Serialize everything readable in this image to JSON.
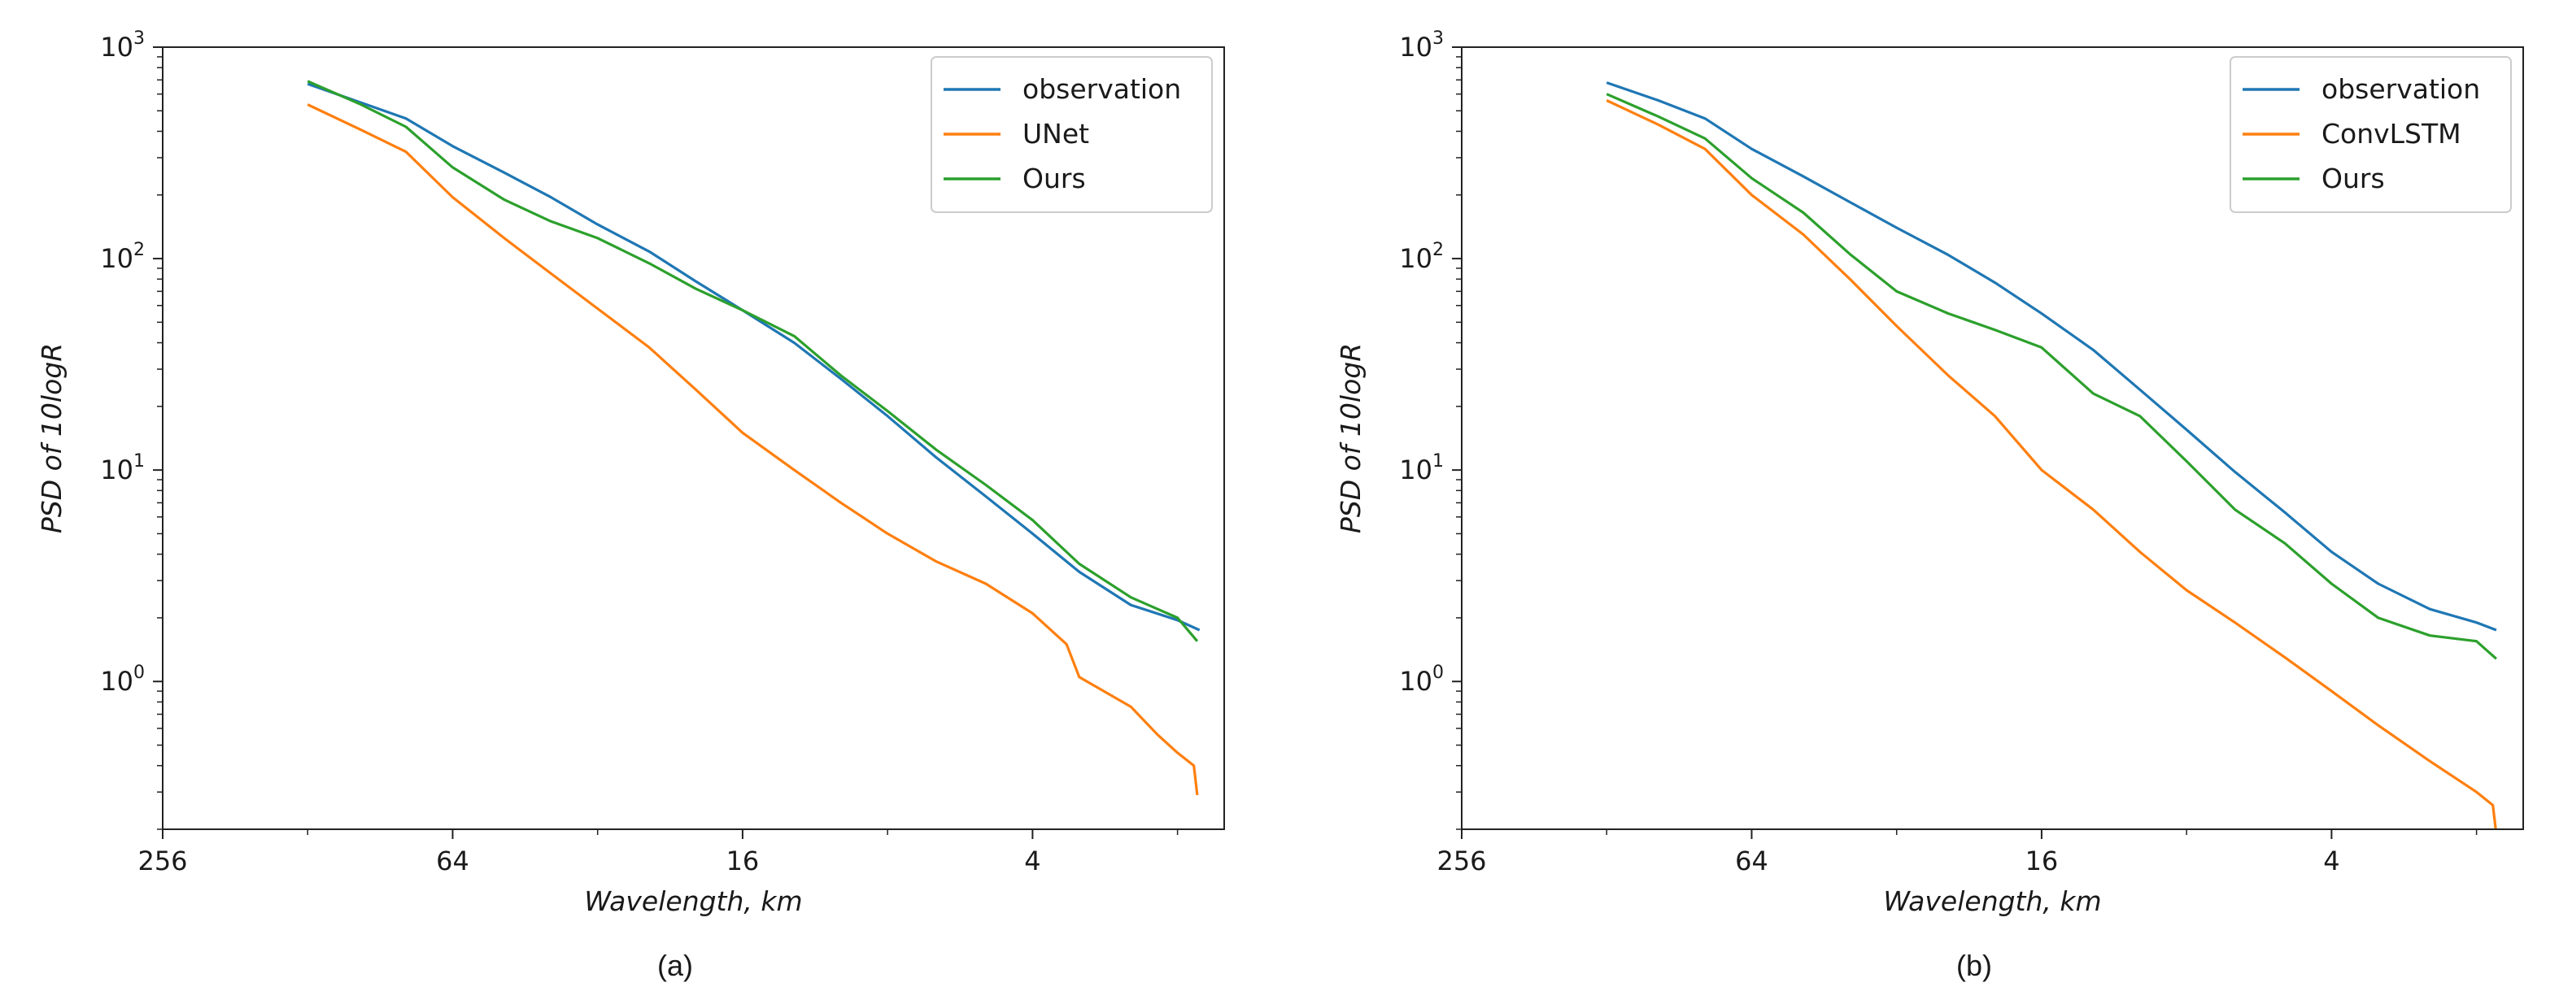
{
  "chart_data": [
    {
      "type": "line",
      "caption": "(a)",
      "xlabel": "Wavelength, km",
      "ylabel": "PSD of 10logR",
      "xscale": "log2",
      "xlim": [
        256,
        1.6
      ],
      "x_reversed": true,
      "yscale": "log10",
      "ylim": [
        0.2,
        1000
      ],
      "x_ticks": [
        256,
        64,
        16,
        4
      ],
      "x_tick_labels": [
        "256",
        "64",
        "16",
        "4"
      ],
      "y_ticks": [
        1,
        10,
        100,
        1000
      ],
      "y_tick_base": [
        "10",
        "10",
        "10",
        "10"
      ],
      "y_tick_exp": [
        "0",
        "1",
        "2",
        "3"
      ],
      "legend_position": "top-right",
      "series": [
        {
          "name": "observation",
          "color": "#1f77b4",
          "x": [
            128,
            100,
            80,
            64,
            50,
            40,
            32,
            25,
            20,
            16,
            12.5,
            10,
            8,
            6.35,
            5,
            4,
            3.2,
            2.5,
            2,
            1.8
          ],
          "y": [
            670,
            550,
            460,
            340,
            255,
            195,
            145,
            108,
            78,
            57,
            40,
            27,
            18,
            11.5,
            7.5,
            5,
            3.3,
            2.3,
            1.95,
            1.75
          ]
        },
        {
          "name": "UNet",
          "color": "#ff7f0e",
          "x": [
            128,
            100,
            80,
            64,
            50,
            40,
            32,
            25,
            20,
            16,
            12.5,
            10,
            8,
            6.35,
            5,
            4,
            3.4,
            3.2,
            2.5,
            2.2,
            2,
            1.85,
            1.82
          ],
          "y": [
            535,
            410,
            320,
            195,
            125,
            85,
            58,
            38,
            24,
            15,
            10,
            7,
            5,
            3.7,
            2.9,
            2.1,
            1.5,
            1.05,
            0.76,
            0.56,
            0.46,
            0.4,
            0.29
          ]
        },
        {
          "name": "Ours",
          "color": "#2ca02c",
          "x": [
            128,
            100,
            80,
            64,
            50,
            40,
            32,
            25,
            20,
            16,
            12.5,
            10,
            8,
            6.35,
            5,
            4,
            3.2,
            2.5,
            2,
            1.82
          ],
          "y": [
            690,
            540,
            420,
            270,
            190,
            150,
            125,
            95,
            72,
            57,
            43,
            28,
            19,
            12.5,
            8.5,
            5.8,
            3.6,
            2.5,
            2.0,
            1.55
          ]
        }
      ]
    },
    {
      "type": "line",
      "caption": "(b)",
      "xlabel": "Wavelength, km",
      "ylabel": "PSD of 10logR",
      "xscale": "log2",
      "xlim": [
        256,
        1.6
      ],
      "x_reversed": true,
      "yscale": "log10",
      "ylim": [
        0.2,
        1000
      ],
      "x_ticks": [
        256,
        64,
        16,
        4
      ],
      "x_tick_labels": [
        "256",
        "64",
        "16",
        "4"
      ],
      "y_ticks": [
        1,
        10,
        100,
        1000
      ],
      "y_tick_base": [
        "10",
        "10",
        "10",
        "10"
      ],
      "y_tick_exp": [
        "0",
        "1",
        "2",
        "3"
      ],
      "legend_position": "top-right",
      "series": [
        {
          "name": "observation",
          "color": "#1f77b4",
          "x": [
            128,
            100,
            80,
            64,
            50,
            40,
            32,
            25,
            20,
            16,
            12.5,
            10,
            8,
            6.35,
            5,
            4,
            3.2,
            2.5,
            2,
            1.82
          ],
          "y": [
            680,
            560,
            460,
            330,
            245,
            185,
            140,
            104,
            77,
            55,
            37,
            24,
            15.5,
            9.8,
            6.3,
            4.1,
            2.9,
            2.2,
            1.9,
            1.75
          ]
        },
        {
          "name": "ConvLSTM",
          "color": "#ff7f0e",
          "x": [
            128,
            100,
            80,
            64,
            50,
            40,
            32,
            25,
            20,
            16,
            12.5,
            10,
            8,
            6.35,
            5,
            4,
            3.2,
            2.5,
            2,
            1.85,
            1.82
          ],
          "y": [
            560,
            430,
            330,
            200,
            130,
            80,
            48,
            28,
            18,
            10,
            6.5,
            4.1,
            2.7,
            1.9,
            1.3,
            0.9,
            0.62,
            0.42,
            0.3,
            0.26,
            0.19
          ]
        },
        {
          "name": "Ours",
          "color": "#2ca02c",
          "x": [
            128,
            100,
            80,
            64,
            50,
            40,
            32,
            25,
            20,
            16,
            12.5,
            10,
            8,
            6.35,
            5,
            4,
            3.2,
            2.5,
            2,
            1.82
          ],
          "y": [
            600,
            470,
            370,
            240,
            165,
            105,
            70,
            55,
            46,
            38,
            23,
            18,
            11,
            6.5,
            4.5,
            2.9,
            2.0,
            1.65,
            1.55,
            1.28
          ]
        }
      ]
    }
  ]
}
